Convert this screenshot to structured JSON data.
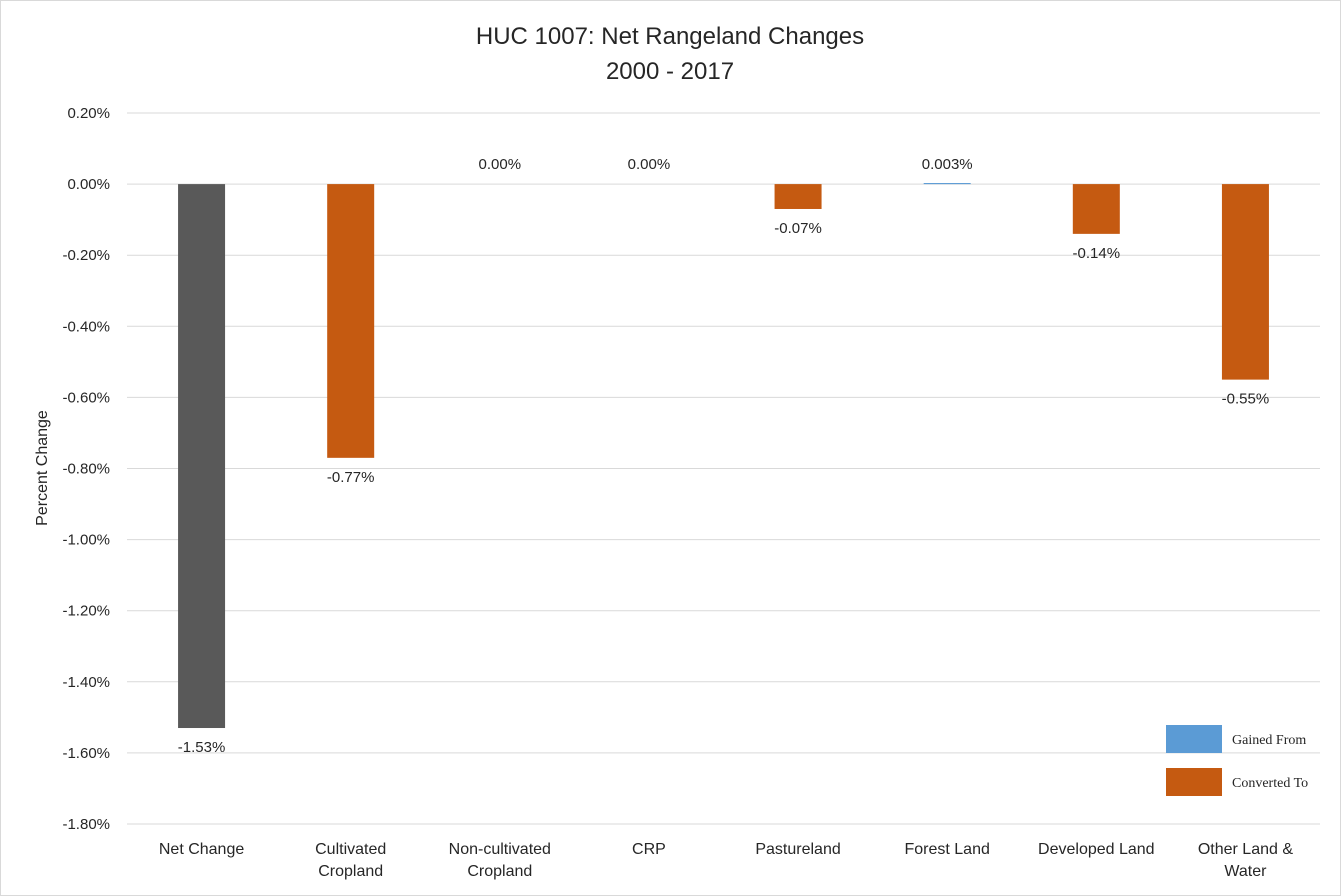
{
  "chart_data": {
    "type": "bar",
    "title_line1": "HUC 1007: Net Rangeland Changes",
    "title_line2": "2000 - 2017",
    "ylabel": "Percent Change",
    "xlabel": "",
    "ylim": [
      -1.8,
      0.2
    ],
    "ytick_step": 0.2,
    "ytick_labels": [
      "0.20%",
      "0.00%",
      "-0.20%",
      "-0.40%",
      "-0.60%",
      "-0.80%",
      "-1.00%",
      "-1.20%",
      "-1.40%",
      "-1.60%",
      "-1.80%"
    ],
    "grid": true,
    "categories": [
      [
        "Net Change"
      ],
      [
        "Cultivated",
        "Cropland"
      ],
      [
        "Non-cultivated",
        "Cropland"
      ],
      [
        "CRP"
      ],
      [
        "Pastureland"
      ],
      [
        "Forest Land"
      ],
      [
        "Developed Land"
      ],
      [
        "Other Land &",
        "Water"
      ]
    ],
    "values": [
      -1.53,
      -0.77,
      0.0,
      0.0,
      -0.07,
      0.003,
      -0.14,
      -0.55
    ],
    "data_labels": [
      "-1.53%",
      "-0.77%",
      "0.00%",
      "0.00%",
      "-0.07%",
      "0.003%",
      "-0.14%",
      "-0.55%"
    ],
    "bar_colors": [
      "#595959",
      "#c55a11",
      "#c55a11",
      "#c55a11",
      "#c55a11",
      "#5b9bd5",
      "#c55a11",
      "#c55a11"
    ],
    "legend_placement": "bottom-right",
    "legend": [
      {
        "label": "Gained From",
        "color": "#5b9bd5"
      },
      {
        "label": "Converted To",
        "color": "#c55a11"
      }
    ]
  }
}
